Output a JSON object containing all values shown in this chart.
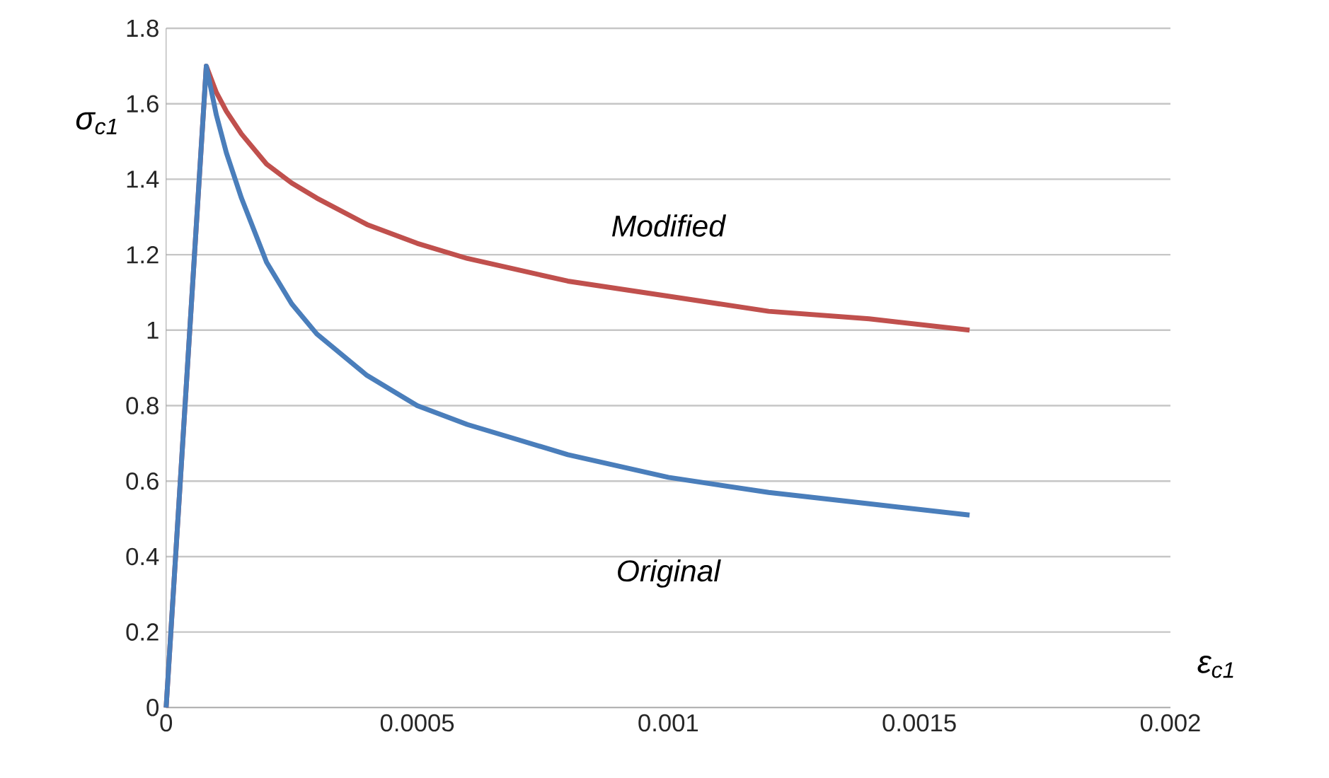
{
  "chart_data": {
    "type": "line",
    "xlabel": "ε$_{c1}$",
    "ylabel": "σ$_{c1}$",
    "xlim": [
      0,
      0.002
    ],
    "ylim": [
      0,
      1.8
    ],
    "xticks": [
      0,
      0.0005,
      0.001,
      0.0015,
      0.002
    ],
    "yticks": [
      0,
      0.2,
      0.4,
      0.6,
      0.8,
      1,
      1.2,
      1.4,
      1.6,
      1.8
    ],
    "grid": "y",
    "legend": false,
    "marker": "none",
    "line_style": "solid",
    "series": [
      {
        "name": "Modified",
        "color": "#c0504d",
        "x": [
          0,
          8e-05,
          0.0001,
          0.00012,
          0.00015,
          0.0002,
          0.00025,
          0.0003,
          0.0004,
          0.0005,
          0.0006,
          0.0007,
          0.0008,
          0.001,
          0.0012,
          0.0014,
          0.0016
        ],
        "values": [
          0,
          1.7,
          1.63,
          1.58,
          1.52,
          1.44,
          1.39,
          1.35,
          1.28,
          1.23,
          1.19,
          1.16,
          1.13,
          1.09,
          1.05,
          1.03,
          1.0
        ]
      },
      {
        "name": "Original",
        "color": "#4a7ebb",
        "x": [
          0,
          8e-05,
          0.0001,
          0.00012,
          0.00015,
          0.0002,
          0.00025,
          0.0003,
          0.0004,
          0.0005,
          0.0006,
          0.0007,
          0.0008,
          0.001,
          0.0012,
          0.0014,
          0.0016
        ],
        "values": [
          0,
          1.7,
          1.57,
          1.47,
          1.35,
          1.18,
          1.07,
          0.99,
          0.88,
          0.8,
          0.75,
          0.71,
          0.67,
          0.61,
          0.57,
          0.54,
          0.51
        ]
      }
    ]
  }
}
